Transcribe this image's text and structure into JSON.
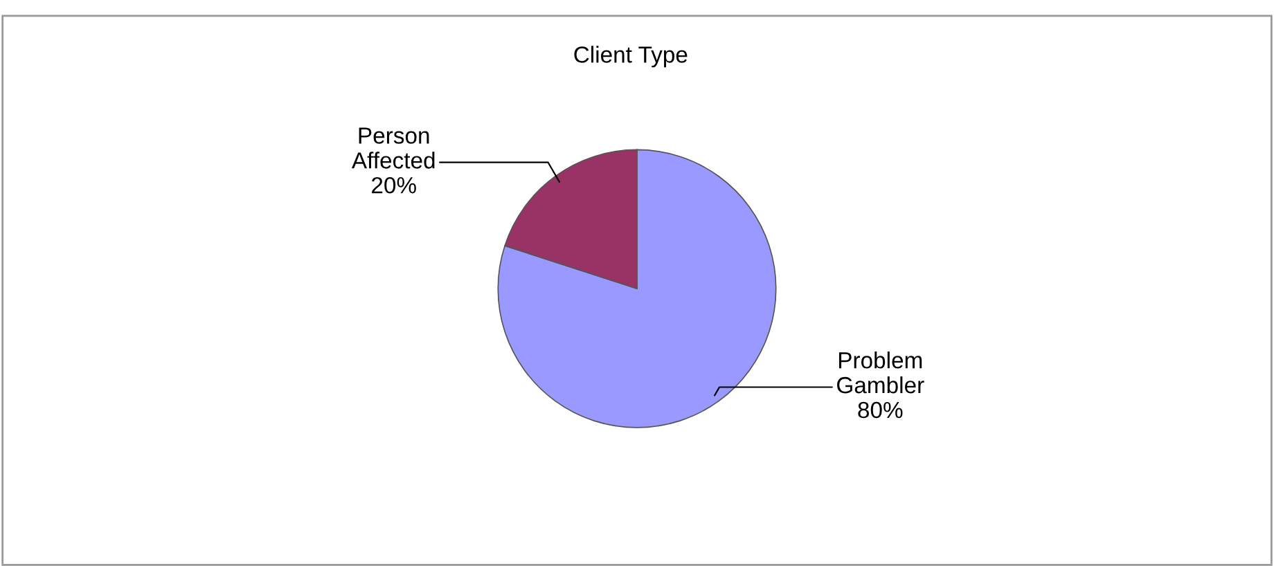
{
  "chart_data": {
    "type": "pie",
    "title": "Client Type",
    "categories": [
      "Problem Gambler",
      "Person Affected"
    ],
    "values": [
      80,
      20
    ],
    "colors": [
      "#9999ff",
      "#993366"
    ],
    "value_labels": [
      "80%",
      "20%"
    ],
    "legend": false
  }
}
